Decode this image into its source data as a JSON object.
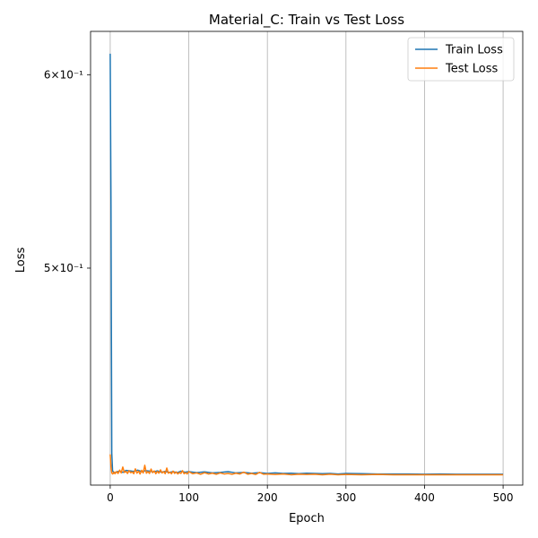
{
  "chart_data": {
    "type": "line",
    "title": "Material_C: Train vs Test Loss",
    "xlabel": "Epoch",
    "ylabel": "Loss",
    "yscale": "log",
    "xlim": [
      -25,
      525
    ],
    "ylim": [
      0.4075,
      0.625
    ],
    "x_ticks": [
      0,
      100,
      200,
      300,
      400,
      500
    ],
    "y_ticks": [
      {
        "value": 0.6,
        "label": "6×10⁻¹"
      },
      {
        "value": 0.5,
        "label": "5×10⁻¹"
      }
    ],
    "grid": {
      "x": true,
      "y": false
    },
    "legend_position": "top-right",
    "series": [
      {
        "name": "Train Loss",
        "color": "#1f77b4",
        "x": [
          0,
          1,
          2,
          3,
          5,
          8,
          12,
          16,
          20,
          25,
          30,
          35,
          40,
          45,
          50,
          55,
          60,
          65,
          70,
          75,
          80,
          85,
          90,
          95,
          100,
          110,
          120,
          130,
          140,
          150,
          160,
          170,
          180,
          190,
          200,
          210,
          220,
          230,
          240,
          250,
          260,
          270,
          280,
          290,
          300,
          320,
          340,
          360,
          380,
          400,
          420,
          440,
          460,
          480,
          500
        ],
        "y": [
          0.612,
          0.53,
          0.42,
          0.413,
          0.4122,
          0.4126,
          0.4129,
          0.4124,
          0.4132,
          0.413,
          0.4128,
          0.4133,
          0.4127,
          0.4131,
          0.4129,
          0.4126,
          0.413,
          0.4125,
          0.4128,
          0.4124,
          0.4127,
          0.4123,
          0.4129,
          0.4125,
          0.4127,
          0.4123,
          0.4126,
          0.4122,
          0.4124,
          0.4127,
          0.4122,
          0.4124,
          0.4121,
          0.4123,
          0.412,
          0.4122,
          0.412,
          0.4121,
          0.4119,
          0.4121,
          0.412,
          0.4119,
          0.412,
          0.4118,
          0.412,
          0.4119,
          0.4118,
          0.4118,
          0.4118,
          0.4117,
          0.4118,
          0.4117,
          0.4117,
          0.4117,
          0.4117
        ]
      },
      {
        "name": "Test Loss",
        "color": "#ff7f0e",
        "x": [
          0,
          1,
          2,
          3,
          4,
          5,
          6,
          8,
          10,
          12,
          14,
          16,
          18,
          20,
          22,
          24,
          26,
          28,
          30,
          32,
          34,
          36,
          38,
          40,
          42,
          44,
          46,
          48,
          50,
          52,
          54,
          56,
          58,
          60,
          62,
          64,
          66,
          68,
          70,
          72,
          74,
          76,
          78,
          80,
          82,
          84,
          86,
          88,
          90,
          92,
          94,
          96,
          98,
          100,
          105,
          110,
          115,
          120,
          125,
          130,
          135,
          140,
          145,
          150,
          155,
          160,
          165,
          170,
          175,
          180,
          185,
          190,
          195,
          200,
          210,
          220,
          230,
          240,
          250,
          260,
          270,
          280,
          290,
          300,
          320,
          340,
          360,
          380,
          400,
          420,
          440,
          460,
          480,
          500
        ],
        "y": [
          0.4195,
          0.4145,
          0.4122,
          0.4118,
          0.412,
          0.4125,
          0.4119,
          0.4127,
          0.412,
          0.4133,
          0.4122,
          0.4145,
          0.4124,
          0.4128,
          0.412,
          0.4131,
          0.4123,
          0.4126,
          0.4119,
          0.4138,
          0.4121,
          0.4129,
          0.4118,
          0.4132,
          0.4122,
          0.4152,
          0.4121,
          0.4127,
          0.412,
          0.4137,
          0.4123,
          0.413,
          0.4119,
          0.4128,
          0.4121,
          0.4134,
          0.4122,
          0.4127,
          0.4119,
          0.4141,
          0.4121,
          0.4125,
          0.4119,
          0.4129,
          0.412,
          0.4126,
          0.4118,
          0.4124,
          0.412,
          0.4131,
          0.4119,
          0.4123,
          0.4118,
          0.4127,
          0.4119,
          0.4122,
          0.4117,
          0.4123,
          0.4118,
          0.4121,
          0.4117,
          0.4122,
          0.4118,
          0.412,
          0.4117,
          0.4121,
          0.4118,
          0.4125,
          0.4117,
          0.412,
          0.4116,
          0.4124,
          0.4117,
          0.4118,
          0.4116,
          0.4118,
          0.4115,
          0.4117,
          0.4116,
          0.4117,
          0.4115,
          0.4117,
          0.4115,
          0.4116,
          0.4115,
          0.4116,
          0.4115,
          0.4115,
          0.4115,
          0.4115,
          0.4115,
          0.4115,
          0.4115,
          0.4115
        ]
      }
    ]
  }
}
